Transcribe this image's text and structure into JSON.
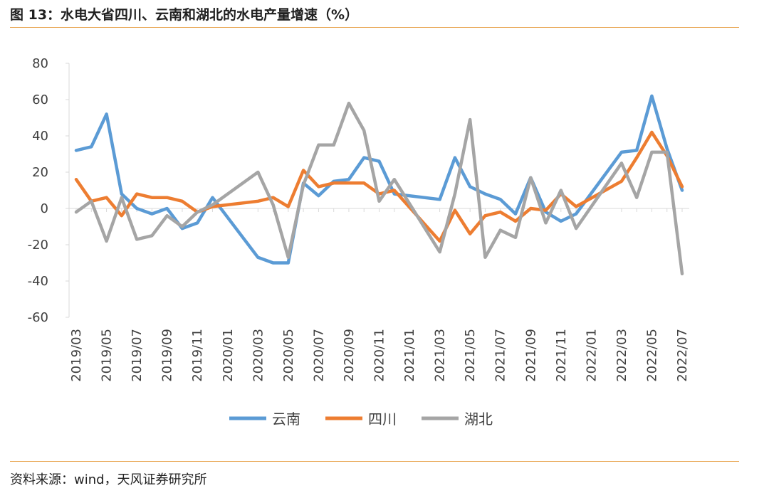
{
  "header": {
    "title": "图 13：水电大省四川、云南和湖北的水电产量增速（%）"
  },
  "footer": {
    "source": "资料来源：wind，天风证券研究所"
  },
  "chart_data": {
    "type": "line",
    "title": "图 13：水电大省四川、云南和湖北的水电产量增速（%）",
    "ylim": [
      -60,
      80
    ],
    "yticks": [
      -60,
      -40,
      -20,
      0,
      20,
      40,
      60,
      80
    ],
    "x": [
      "2019/03",
      "2019/04",
      "2019/05",
      "2019/06",
      "2019/07",
      "2019/08",
      "2019/09",
      "2019/10",
      "2019/11",
      "2019/12",
      "2020/03",
      "2020/04",
      "2020/05",
      "2020/06",
      "2020/07",
      "2020/08",
      "2020/09",
      "2020/10",
      "2020/11",
      "2020/12",
      "2021/03",
      "2021/04",
      "2021/05",
      "2021/06",
      "2021/07",
      "2021/08",
      "2021/09",
      "2021/10",
      "2021/11",
      "2021/12",
      "2022/03",
      "2022/04",
      "2022/05",
      "2022/06",
      "2022/07"
    ],
    "xtick_labels": [
      "2019/03",
      "2019/05",
      "2019/07",
      "2019/09",
      "2019/11",
      "2020/01",
      "2020/03",
      "2020/05",
      "2020/07",
      "2020/09",
      "2020/11",
      "2021/01",
      "2021/03",
      "2021/05",
      "2021/07",
      "2021/09",
      "2021/11",
      "2022/01",
      "2022/03",
      "2022/05",
      "2022/07"
    ],
    "legend_position": "bottom",
    "grid": false,
    "series": [
      {
        "name": "云南",
        "color": "#5b9bd5",
        "values": [
          32,
          34,
          52,
          8,
          0,
          -3,
          0,
          -11,
          -8,
          6,
          -27,
          -30,
          -30,
          14,
          7,
          15,
          16,
          28,
          26,
          8,
          5,
          28,
          12,
          8,
          5,
          -3,
          17,
          -2,
          -7,
          -3,
          31,
          32,
          62,
          33,
          10
        ]
      },
      {
        "name": "四川",
        "color": "#ed7d31",
        "values": [
          16,
          4,
          6,
          -4,
          8,
          6,
          6,
          4,
          -2,
          1,
          4,
          6,
          1,
          21,
          12,
          14,
          14,
          14,
          8,
          10,
          -18,
          -1,
          -14,
          -4,
          -2,
          -7,
          0,
          -1,
          8,
          1,
          15,
          28,
          42,
          29,
          12
        ]
      },
      {
        "name": "湖北",
        "color": "#a5a5a5",
        "values": [
          -2,
          4,
          -18,
          6,
          -17,
          -15,
          -4,
          -10,
          -2,
          2,
          20,
          2,
          -27,
          13,
          35,
          35,
          58,
          43,
          4,
          16,
          -24,
          8,
          49,
          -27,
          -12,
          -16,
          17,
          -8,
          10,
          -11,
          25,
          6,
          31,
          31,
          -36
        ]
      }
    ]
  }
}
